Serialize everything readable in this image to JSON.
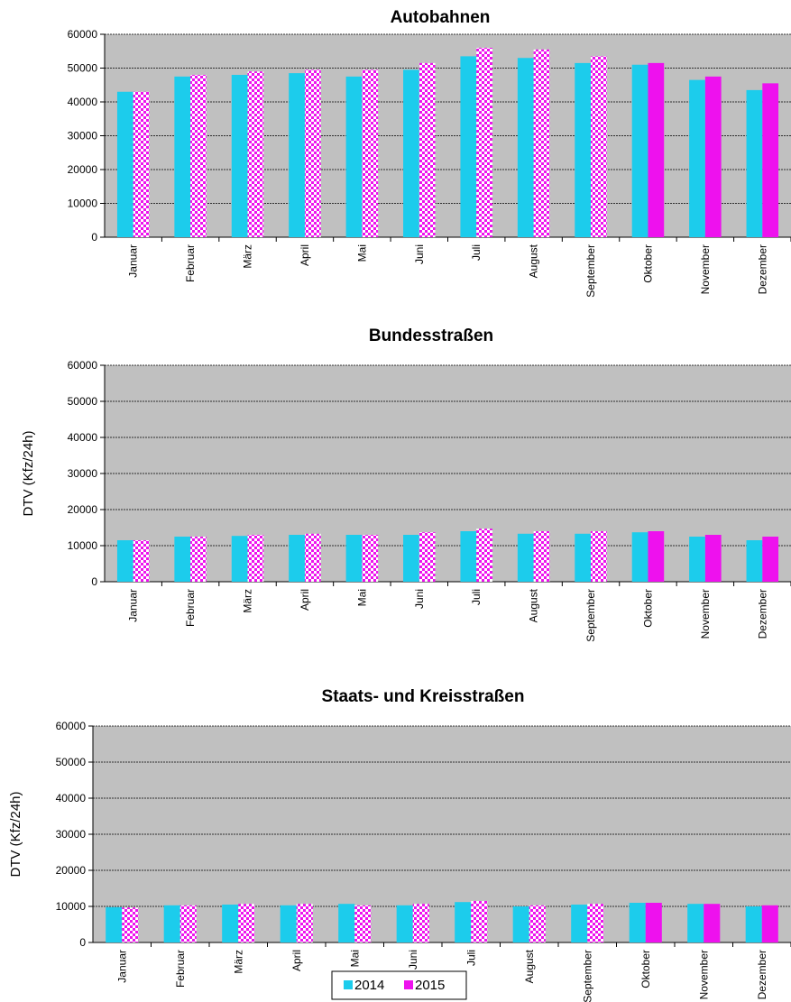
{
  "chart_data": [
    {
      "type": "bar",
      "title": "Autobahnen",
      "ylabel": "",
      "ylim": [
        0,
        60000
      ],
      "yticks": [
        0,
        10000,
        20000,
        30000,
        40000,
        50000,
        60000
      ],
      "grid": true,
      "categories": [
        "Januar",
        "Februar",
        "März",
        "April",
        "Mai",
        "Juni",
        "Juli",
        "August",
        "September",
        "Oktober",
        "November",
        "Dezember"
      ],
      "series": [
        {
          "name": "2014",
          "values": [
            43000,
            47500,
            48000,
            48500,
            47500,
            49500,
            53500,
            53000,
            51500,
            51000,
            46500,
            43500
          ]
        },
        {
          "name": "2015",
          "values": [
            43000,
            48000,
            49000,
            49500,
            49500,
            51500,
            56000,
            55500,
            53500,
            51500,
            47500,
            45500
          ]
        }
      ]
    },
    {
      "type": "bar",
      "title": "Bundesstraßen",
      "ylabel": "DTV (Kfz/24h)",
      "ylim": [
        0,
        60000
      ],
      "yticks": [
        0,
        10000,
        20000,
        30000,
        40000,
        50000,
        60000
      ],
      "grid": true,
      "categories": [
        "Januar",
        "Februar",
        "März",
        "April",
        "Mai",
        "Juni",
        "Juli",
        "August",
        "September",
        "Oktober",
        "November",
        "Dezember"
      ],
      "series": [
        {
          "name": "2014",
          "values": [
            11500,
            12500,
            12700,
            13000,
            13000,
            13000,
            14000,
            13300,
            13300,
            13700,
            12500,
            11500
          ]
        },
        {
          "name": "2015",
          "values": [
            11500,
            12500,
            13000,
            13300,
            13000,
            13700,
            14700,
            14000,
            14000,
            14000,
            13000,
            12500
          ]
        }
      ]
    },
    {
      "type": "bar",
      "title": "Staats- und Kreisstraßen",
      "ylabel": "DTV (Kfz/24h)",
      "ylim": [
        0,
        60000
      ],
      "yticks": [
        0,
        10000,
        20000,
        30000,
        40000,
        50000,
        60000
      ],
      "grid": true,
      "categories": [
        "Januar",
        "Februar",
        "März",
        "April",
        "Mai",
        "Juni",
        "Juli",
        "August",
        "September",
        "Oktober",
        "November",
        "Dezember"
      ],
      "series": [
        {
          "name": "2014",
          "values": [
            9800,
            10300,
            10500,
            10300,
            10700,
            10300,
            11200,
            10000,
            10500,
            11000,
            10700,
            10000
          ]
        },
        {
          "name": "2015",
          "values": [
            9700,
            10300,
            10700,
            10700,
            10300,
            10700,
            11500,
            10300,
            10700,
            11000,
            10700,
            10300
          ]
        }
      ]
    }
  ],
  "legend": {
    "placement": "bottom-center",
    "items": [
      {
        "label": "2014",
        "color": "#1cccec"
      },
      {
        "label": "2015",
        "color": "#ee11ee"
      }
    ]
  },
  "colors": {
    "plot_background": "#c0c0c0",
    "series_2014": "#1cccec",
    "series_2015": "#ee11ee",
    "checker_light": "#ffffff"
  },
  "solid_2015_from_month": "Oktober"
}
